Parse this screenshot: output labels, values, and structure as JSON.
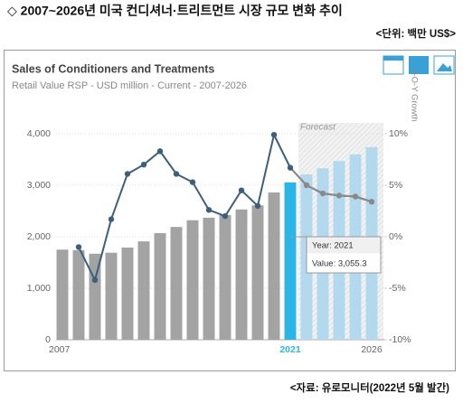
{
  "header": {
    "title": "◇ 2007~2026년 미국 컨디셔너·트리트먼트 시장 규모 변화 추이",
    "unit": "<단위: 백만 US$>"
  },
  "footer": {
    "source": "<자료: 유로모니터(2022년 5월 발간)"
  },
  "chart_data": {
    "type": "bar",
    "title": "Sales of Conditioners and Treatments",
    "subtitle": "Retail Value RSP - USD million - Current - 2007-2026",
    "y2_label": "Y-O-Y Growth",
    "forecast_label": "Forecast",
    "forecast_color": "#b3d9ee",
    "categories": [
      "2007",
      null,
      null,
      null,
      null,
      null,
      null,
      null,
      null,
      null,
      null,
      null,
      null,
      null,
      "2021",
      null,
      null,
      null,
      null,
      "2026"
    ],
    "series": [
      {
        "type": "bar",
        "values": [
          1750,
          1740,
          1670,
          1690,
          1790,
          1910,
          2070,
          2190,
          2320,
          2370,
          2420,
          2530,
          2610,
          2860,
          3055.3,
          3210,
          3330,
          3470,
          3600,
          3740
        ],
        "colors": [
          "#a3a3a3",
          "#a3a3a3",
          "#a3a3a3",
          "#a3a3a3",
          "#a3a3a3",
          "#a3a3a3",
          "#a3a3a3",
          "#a3a3a3",
          "#a3a3a3",
          "#a3a3a3",
          "#a3a3a3",
          "#a3a3a3",
          "#a3a3a3",
          "#a3a3a3",
          "#2bb5e6",
          "#b3d9ee",
          "#b3d9ee",
          "#b3d9ee",
          "#b3d9ee",
          "#b3d9ee"
        ]
      },
      {
        "type": "line",
        "axis": "y2",
        "values": [
          null,
          -1.0,
          -4.2,
          1.7,
          6.1,
          7.0,
          8.3,
          6.1,
          5.3,
          2.6,
          2.0,
          4.5,
          3.0,
          9.9,
          6.7,
          5.0,
          4.2,
          4.0,
          3.9,
          3.4
        ],
        "colors": [
          "#3e5f7b",
          "#3e5f7b",
          "#3e5f7b",
          "#3e5f7b",
          "#3e5f7b",
          "#3e5f7b",
          "#3e5f7b",
          "#3e5f7b",
          "#3e5f7b",
          "#3e5f7b",
          "#3e5f7b",
          "#3e5f7b",
          "#3e5f7b",
          "#3e5f7b",
          "#3e5f7b",
          "#8a8a8a",
          "#8a8a8a",
          "#8a8a8a",
          "#8a8a8a",
          "#8a8a8a"
        ]
      }
    ],
    "tooltip": {
      "index": 14,
      "year": "Year: 2021",
      "value": "Value: 3,055.3"
    },
    "ylim": [
      0,
      4000
    ],
    "yticks": [
      0,
      {
        "value": 1000,
        "label": "1,000"
      },
      {
        "value": 2000,
        "label": "2,000"
      },
      {
        "value": 3000,
        "label": "3,000"
      },
      {
        "value": 4000,
        "label": "4,000"
      }
    ],
    "y2lim": [
      -10,
      10
    ],
    "y2ticks": [
      {
        "value": -10,
        "label": "-10%"
      },
      {
        "value": -5,
        "label": "-5%"
      },
      {
        "value": 0,
        "label": "0%"
      },
      {
        "value": 5,
        "label": "5%"
      },
      {
        "value": 10,
        "label": "10%"
      }
    ],
    "grid": true
  }
}
